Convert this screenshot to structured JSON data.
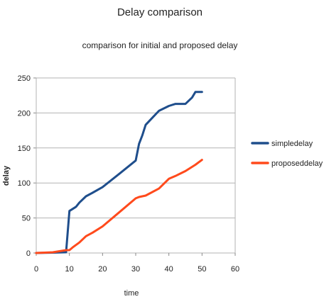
{
  "chart_data": {
    "type": "line",
    "title": "Delay comparison",
    "subtitle": "comparison for initial and proposed delay",
    "xlabel": "time",
    "ylabel": "delay",
    "xlim": [
      0,
      60
    ],
    "ylim": [
      0,
      250
    ],
    "x_ticks": [
      0,
      10,
      20,
      30,
      40,
      50,
      60
    ],
    "y_ticks": [
      0,
      50,
      100,
      150,
      200,
      250
    ],
    "grid": "horizontal",
    "legend_position": "right",
    "series": [
      {
        "name": "simpledelay",
        "color": "#1f4e8c",
        "points": [
          [
            0,
            0
          ],
          [
            5,
            0.5
          ],
          [
            9,
            1
          ],
          [
            10,
            60
          ],
          [
            11,
            63
          ],
          [
            12,
            66
          ],
          [
            13,
            72
          ],
          [
            15,
            81
          ],
          [
            17,
            86
          ],
          [
            20,
            94
          ],
          [
            25,
            113
          ],
          [
            30,
            132
          ],
          [
            31,
            156
          ],
          [
            32,
            168
          ],
          [
            33,
            183
          ],
          [
            35,
            193
          ],
          [
            37,
            203
          ],
          [
            40,
            210
          ],
          [
            42,
            213
          ],
          [
            45,
            213
          ],
          [
            47,
            222
          ],
          [
            48,
            230
          ],
          [
            50,
            230
          ]
        ]
      },
      {
        "name": "proposeddelay",
        "color": "#ff4a1c",
        "points": [
          [
            0,
            0
          ],
          [
            5,
            1
          ],
          [
            9,
            4
          ],
          [
            10,
            4
          ],
          [
            11,
            8
          ],
          [
            13,
            15
          ],
          [
            15,
            24
          ],
          [
            17,
            29
          ],
          [
            20,
            38
          ],
          [
            25,
            58
          ],
          [
            30,
            78
          ],
          [
            31,
            80
          ],
          [
            33,
            82
          ],
          [
            37,
            92
          ],
          [
            40,
            106
          ],
          [
            42,
            110
          ],
          [
            45,
            117
          ],
          [
            48,
            126
          ],
          [
            50,
            133
          ]
        ]
      }
    ]
  }
}
